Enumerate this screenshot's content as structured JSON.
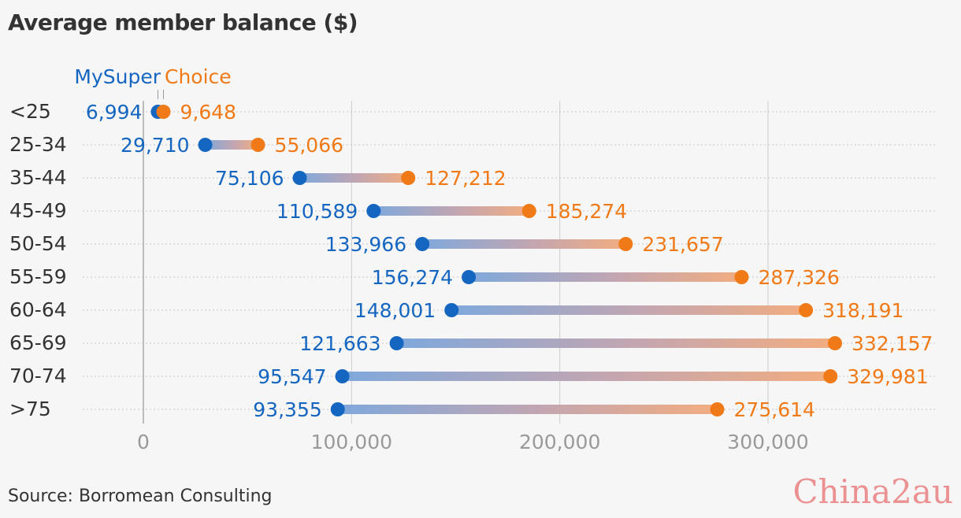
{
  "title": "Average member balance ($)",
  "source": "Source: Borromean Consulting",
  "watermark": "China2au",
  "colors": {
    "mysuper": "#1566c0",
    "choice": "#f07a18",
    "label": "#333333",
    "tick": "#999999",
    "grid": "#cccccc"
  },
  "chart_data": {
    "type": "dumbbell",
    "title": "Average member balance ($)",
    "categories": [
      "<25",
      "25-34",
      "35-44",
      "45-49",
      "50-54",
      "55-59",
      "60-64",
      "65-69",
      "70-74",
      ">75"
    ],
    "series": [
      {
        "name": "MySuper",
        "values": [
          6994,
          29710,
          75106,
          110589,
          133966,
          156274,
          148001,
          121663,
          95547,
          93355
        ]
      },
      {
        "name": "Choice",
        "values": [
          9648,
          55066,
          127212,
          185274,
          231657,
          287326,
          318191,
          332157,
          329981,
          275614
        ]
      }
    ],
    "x_ticks": [
      0,
      100000,
      200000,
      300000
    ],
    "x_tick_labels": [
      "0",
      "100,000",
      "200,000",
      "300,000"
    ],
    "value_labels": {
      "MySuper": [
        "6,994",
        "29,710",
        "75,106",
        "110,589",
        "133,966",
        "156,274",
        "148,001",
        "121,663",
        "95,547",
        "93,355"
      ],
      "Choice": [
        "9,648",
        "55,066",
        "127,212",
        "185,274",
        "231,657",
        "287,326",
        "318,191",
        "332,157",
        "329,981",
        "275,614"
      ]
    },
    "xlim": [
      -30000,
      380000
    ],
    "legend": "top-left",
    "grid": true
  }
}
